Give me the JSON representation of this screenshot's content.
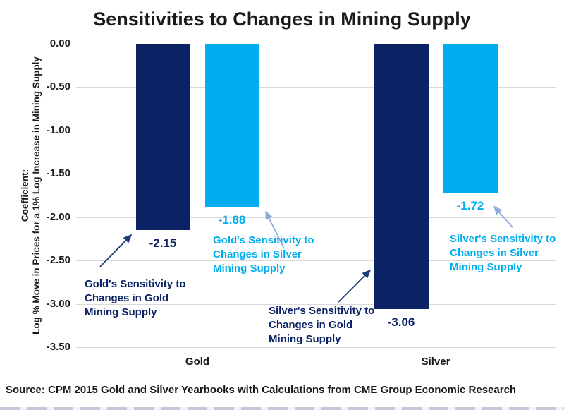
{
  "title": "Sensitivities to Changes in Mining Supply",
  "source": "Source: CPM 2015 Gold and Silver Yearbooks with Calculations from CME Group Economic Research",
  "y_axis": {
    "title_line1": "Coefficient:",
    "title_line2": "Log % Move in Prices for a 1% Log Increase in Mining Supply",
    "tick_labels": [
      "0.00",
      "-0.50",
      "-1.00",
      "-1.50",
      "-2.00",
      "-2.50",
      "-3.00",
      "-3.50"
    ]
  },
  "colors": {
    "navy": "#0B2265",
    "light_blue": "#00AEEF",
    "gridline": "#D9D9D9",
    "navy_arrow": "#1F3C78",
    "light_arrow": "#8FAADC",
    "text": "#1A1A1A"
  },
  "chart_data": {
    "type": "bar",
    "title": "Sensitivities to Changes in Mining Supply",
    "ylabel": "Coefficient: Log % Move in Prices for a 1% Log Increase in Mining Supply",
    "xlabel": "",
    "categories": [
      "Gold",
      "Silver"
    ],
    "series": [
      {
        "name": "Sensitivity to Changes in Gold Mining Supply",
        "color_key": "navy",
        "values": [
          -2.15,
          -3.06
        ],
        "labels": [
          "-2.15",
          "-3.06"
        ]
      },
      {
        "name": "Sensitivity to Changes in Silver Mining Supply",
        "color_key": "light_blue",
        "values": [
          -1.88,
          -1.72
        ],
        "labels": [
          "-1.88",
          "-1.72"
        ]
      }
    ],
    "ylim": [
      -3.5,
      0
    ],
    "ytick_step": 0.5,
    "grid": true,
    "legend": false,
    "annotations": [
      {
        "lines": [
          "Gold's Sensitivity to",
          "Changes in Gold",
          "Mining Supply"
        ],
        "color_key": "navy"
      },
      {
        "lines": [
          "Gold's Sensitivity to",
          "Changes in Silver",
          "Mining Supply"
        ],
        "color_key": "light_blue"
      },
      {
        "lines": [
          "Silver's Sensitivity to",
          "Changes in Gold",
          "Mining Supply"
        ],
        "color_key": "navy"
      },
      {
        "lines": [
          "Silver's Sensitivity to",
          "Changes in Silver",
          "Mining Supply"
        ],
        "color_key": "light_blue"
      }
    ]
  }
}
